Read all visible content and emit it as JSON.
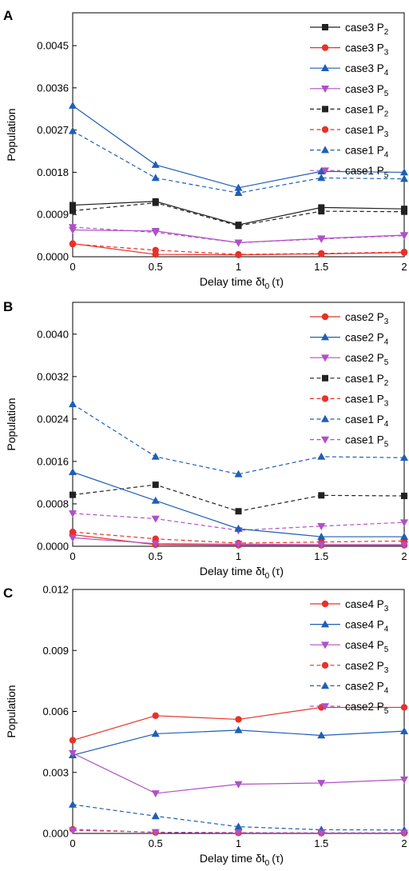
{
  "chart_data": [
    {
      "type": "line",
      "panel_label": "A",
      "xlabel": "Delay time",
      "xlabel_symbol": "δt",
      "xlabel_sub": "0",
      "xlabel_unit": "(τ)",
      "ylabel": "Population",
      "x": [
        0,
        0.5,
        1,
        1.5,
        2
      ],
      "x_ticks": [
        "0",
        "0.5",
        "1",
        "1.5",
        "2"
      ],
      "xlim": [
        0,
        2
      ],
      "ylim": [
        0,
        0.0052
      ],
      "y_ticks": [
        "0.0000",
        "0.0009",
        "0.0018",
        "0.0027",
        "0.0036",
        "0.0045"
      ],
      "y_tick_values": [
        0,
        0.0009,
        0.0018,
        0.0027,
        0.0036,
        0.0045
      ],
      "legend_position": "top-right",
      "series": [
        {
          "label": "case3 P",
          "sub": "2",
          "color": "#222222",
          "dash": "solid",
          "marker": "square",
          "values": [
            0.0011,
            0.00118,
            0.00068,
            0.00105,
            0.00102
          ]
        },
        {
          "label": "case3 P",
          "sub": "3",
          "color": "#e8312a",
          "dash": "solid",
          "marker": "circle",
          "values": [
            0.00028,
            5e-05,
            4e-05,
            6e-05,
            9e-05
          ]
        },
        {
          "label": "case3 P",
          "sub": "4",
          "color": "#1f5fb5",
          "dash": "solid",
          "marker": "triangle-up",
          "values": [
            0.00322,
            0.00196,
            0.00147,
            0.00182,
            0.0018
          ]
        },
        {
          "label": "case3 P",
          "sub": "5",
          "color": "#b050c8",
          "dash": "solid",
          "marker": "triangle-down",
          "values": [
            0.00057,
            0.00055,
            0.0003,
            0.00039,
            0.00046
          ]
        },
        {
          "label": "case1 P",
          "sub": "2",
          "color": "#222222",
          "dash": "dashed",
          "marker": "square",
          "values": [
            0.00098,
            0.00115,
            0.00066,
            0.00097,
            0.00096
          ]
        },
        {
          "label": "case1 P",
          "sub": "3",
          "color": "#e8312a",
          "dash": "dashed",
          "marker": "circle",
          "values": [
            0.00027,
            0.00014,
            5e-05,
            7e-05,
            0.0001
          ]
        },
        {
          "label": "case1 P",
          "sub": "4",
          "color": "#1f5fb5",
          "dash": "dashed",
          "marker": "triangle-up",
          "values": [
            0.00268,
            0.00168,
            0.00136,
            0.00168,
            0.00166
          ]
        },
        {
          "label": "case1 P",
          "sub": "5",
          "color": "#b050c8",
          "dash": "dashed",
          "marker": "triangle-down",
          "values": [
            0.00063,
            0.00052,
            0.0003,
            0.00038,
            0.00045
          ]
        }
      ]
    },
    {
      "type": "line",
      "panel_label": "B",
      "xlabel": "Delay time",
      "xlabel_symbol": "δt",
      "xlabel_sub": "0",
      "xlabel_unit": "(τ)",
      "ylabel": "Population",
      "x": [
        0,
        0.5,
        1,
        1.5,
        2
      ],
      "x_ticks": [
        "0",
        "0.5",
        "1",
        "1.5",
        "2"
      ],
      "xlim": [
        0,
        2
      ],
      "ylim": [
        0,
        0.0046
      ],
      "y_ticks": [
        "0.0000",
        "0.0008",
        "0.0016",
        "0.0024",
        "0.0032",
        "0.0040"
      ],
      "y_tick_values": [
        0,
        0.0008,
        0.0016,
        0.0024,
        0.0032,
        0.004
      ],
      "legend_position": "top-right",
      "series": [
        {
          "label": "case2 P",
          "sub": "3",
          "color": "#e8312a",
          "dash": "solid",
          "marker": "circle",
          "values": [
            0.00022,
            3e-05,
            2e-05,
            2e-05,
            2e-05
          ]
        },
        {
          "label": "case2 P",
          "sub": "4",
          "color": "#1f5fb5",
          "dash": "solid",
          "marker": "triangle-up",
          "values": [
            0.0014,
            0.00086,
            0.00033,
            0.00018,
            0.00018
          ]
        },
        {
          "label": "case2 P",
          "sub": "5",
          "color": "#b050c8",
          "dash": "solid",
          "marker": "triangle-down",
          "values": [
            0.00016,
            5e-05,
            4e-05,
            3e-05,
            3e-05
          ]
        },
        {
          "label": "case1 P",
          "sub": "2",
          "color": "#222222",
          "dash": "dashed",
          "marker": "square",
          "values": [
            0.00097,
            0.00116,
            0.00066,
            0.00096,
            0.00095
          ]
        },
        {
          "label": "case1 P",
          "sub": "3",
          "color": "#e8312a",
          "dash": "dashed",
          "marker": "circle",
          "values": [
            0.00027,
            0.00014,
            6e-05,
            8e-05,
            0.0001
          ]
        },
        {
          "label": "case1 P",
          "sub": "4",
          "color": "#1f5fb5",
          "dash": "dashed",
          "marker": "triangle-up",
          "values": [
            0.00268,
            0.00169,
            0.00136,
            0.00169,
            0.00167
          ]
        },
        {
          "label": "case1 P",
          "sub": "5",
          "color": "#b050c8",
          "dash": "dashed",
          "marker": "triangle-down",
          "values": [
            0.00062,
            0.00052,
            0.0003,
            0.00038,
            0.00045
          ]
        }
      ]
    },
    {
      "type": "line",
      "panel_label": "C",
      "xlabel": "Delay time",
      "xlabel_symbol": "δt",
      "xlabel_sub": "0",
      "xlabel_unit": "(τ)",
      "ylabel": "Population",
      "x": [
        0,
        0.5,
        1,
        1.5,
        2
      ],
      "x_ticks": [
        "0",
        "0.5",
        "1",
        "1.5",
        "2"
      ],
      "xlim": [
        0,
        2
      ],
      "ylim": [
        0,
        0.012
      ],
      "y_ticks": [
        "0.000",
        "0.003",
        "0.006",
        "0.009",
        "0.012"
      ],
      "y_tick_values": [
        0,
        0.003,
        0.006,
        0.009,
        0.012
      ],
      "legend_position": "top-right",
      "series": [
        {
          "label": "case4 P",
          "sub": "3",
          "color": "#e8312a",
          "dash": "solid",
          "marker": "circle",
          "values": [
            0.00458,
            0.00579,
            0.00561,
            0.0062,
            0.0062
          ]
        },
        {
          "label": "case4 P",
          "sub": "4",
          "color": "#1f5fb5",
          "dash": "solid",
          "marker": "triangle-up",
          "values": [
            0.00385,
            0.0049,
            0.00508,
            0.00482,
            0.00503
          ]
        },
        {
          "label": "case4 P",
          "sub": "5",
          "color": "#b050c8",
          "dash": "solid",
          "marker": "triangle-down",
          "values": [
            0.00395,
            0.00197,
            0.00242,
            0.00248,
            0.00265
          ]
        },
        {
          "label": "case2 P",
          "sub": "3",
          "color": "#e8312a",
          "dash": "dashed",
          "marker": "circle",
          "values": [
            0.0002,
            5e-05,
            3e-05,
            2e-05,
            2e-05
          ]
        },
        {
          "label": "case2 P",
          "sub": "4",
          "color": "#1f5fb5",
          "dash": "dashed",
          "marker": "triangle-up",
          "values": [
            0.00142,
            0.00085,
            0.00033,
            0.00018,
            0.00017
          ]
        },
        {
          "label": "case2 P",
          "sub": "5",
          "color": "#b050c8",
          "dash": "dashed",
          "marker": "triangle-down",
          "values": [
            0.00015,
            6e-05,
            4e-05,
            3e-05,
            3e-05
          ]
        }
      ]
    }
  ]
}
